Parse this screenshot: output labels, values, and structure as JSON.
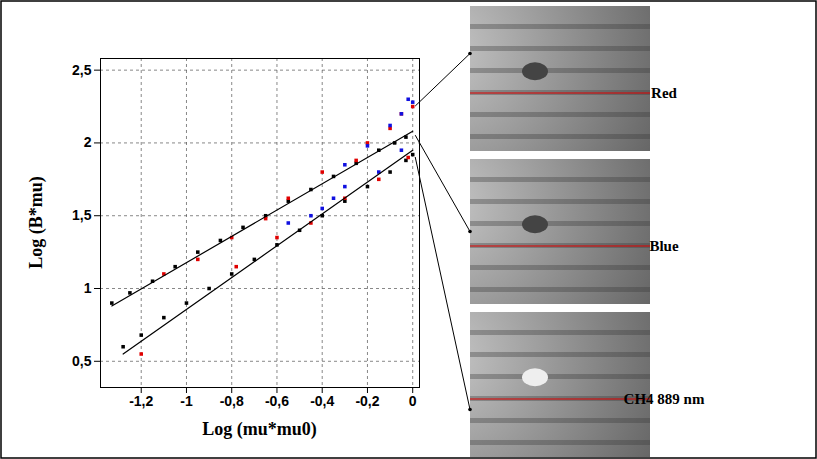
{
  "chart_data": {
    "type": "scatter",
    "xlabel": "Log (mu*mu0)",
    "ylabel": "Log (B*mu)",
    "xlim": [
      -1.38,
      0.03
    ],
    "ylim": [
      0.32,
      2.58
    ],
    "xticks": [
      {
        "value": -1.2,
        "label": "-1,2"
      },
      -1,
      {
        "value": -0.8,
        "label": "-0,8"
      },
      {
        "value": -0.6,
        "label": "-0,6"
      },
      {
        "value": -0.4,
        "label": "-0,4"
      },
      {
        "value": -0.2,
        "label": "-0,2"
      },
      0
    ],
    "yticks": [
      {
        "value": 0.5,
        "label": "0,5"
      },
      1,
      {
        "value": 1.5,
        "label": "1,5"
      },
      2,
      {
        "value": 2.5,
        "label": "2,5"
      }
    ],
    "grid": true,
    "series": [
      {
        "name": "CH4 889 nm",
        "type": "scatter",
        "marker": "square",
        "color": "#000000",
        "x": [
          -1.33,
          -1.25,
          -1.15,
          -1.05,
          -0.95,
          -0.85,
          -0.75,
          -0.65,
          -0.55,
          -0.45,
          -0.35,
          -0.25,
          -0.15,
          -0.08,
          -0.03,
          -1.28,
          -1.2,
          -1.1,
          -1.0,
          -0.9,
          -0.8,
          -0.7,
          -0.6,
          -0.5,
          -0.4,
          -0.3,
          -0.2,
          -0.1,
          -0.03,
          0
        ],
        "values": [
          0.9,
          0.97,
          1.05,
          1.15,
          1.25,
          1.33,
          1.42,
          1.5,
          1.6,
          1.68,
          1.77,
          1.86,
          1.95,
          2.0,
          2.04,
          0.6,
          0.68,
          0.8,
          0.9,
          1.0,
          1.1,
          1.2,
          1.3,
          1.4,
          1.5,
          1.6,
          1.7,
          1.8,
          1.88,
          1.92
        ]
      },
      {
        "name": "Red",
        "type": "scatter",
        "marker": "square",
        "color": "#e00000",
        "x": [
          -1.2,
          -1.1,
          -0.95,
          -0.8,
          -0.78,
          -0.65,
          -0.6,
          -0.55,
          -0.45,
          -0.4,
          -0.3,
          -0.25,
          -0.2,
          -0.15,
          -0.1,
          -0.05,
          -0.02,
          0
        ],
        "values": [
          0.55,
          1.1,
          1.2,
          1.35,
          1.15,
          1.48,
          1.35,
          1.62,
          1.45,
          1.8,
          1.62,
          1.88,
          2.0,
          1.75,
          2.1,
          2.2,
          1.9,
          2.25
        ]
      },
      {
        "name": "Blue",
        "type": "scatter",
        "marker": "square",
        "color": "#1010e0",
        "x": [
          -0.55,
          -0.45,
          -0.4,
          -0.35,
          -0.3,
          -0.3,
          -0.2,
          -0.15,
          -0.1,
          -0.05,
          -0.05,
          -0.02,
          0
        ],
        "values": [
          1.45,
          1.5,
          1.55,
          1.62,
          1.7,
          1.85,
          1.98,
          1.8,
          2.12,
          2.2,
          1.95,
          2.3,
          2.28
        ]
      },
      {
        "type": "line",
        "line_style": "solid",
        "color": "#000000",
        "x": [
          -1.33,
          0
        ],
        "values": [
          0.88,
          2.08
        ]
      },
      {
        "type": "line",
        "line_style": "solid",
        "color": "#000000",
        "x": [
          -1.28,
          0
        ],
        "values": [
          0.55,
          1.95
        ]
      }
    ],
    "images": [
      {
        "label": "Red",
        "points_to": {
          "x": 0,
          "y": 2.25
        }
      },
      {
        "label": "Blue",
        "points_to": {
          "x": 0,
          "y": 2.05
        }
      },
      {
        "label": "CH4 889 nm",
        "points_to": {
          "x": 0,
          "y": 1.9
        }
      }
    ]
  }
}
